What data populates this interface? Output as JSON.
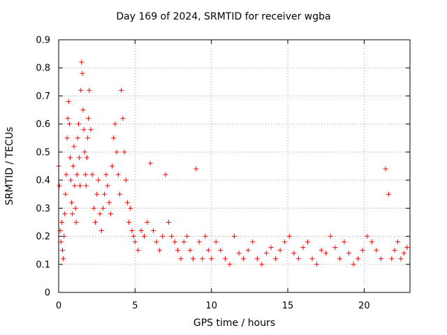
{
  "chart_data": {
    "type": "scatter",
    "title": "Day 169 of 2024, SRMTID for receiver wgba",
    "xlabel": "GPS time / hours",
    "ylabel": "SRMTID / TECUs",
    "xlim": [
      0,
      23
    ],
    "ylim": [
      0,
      0.9
    ],
    "xticks": [
      0,
      5,
      10,
      15,
      20
    ],
    "yticks": [
      0,
      0.1,
      0.2,
      0.3,
      0.4,
      0.5,
      0.6,
      0.7,
      0.8,
      0.9
    ],
    "grid": true,
    "marker": "+",
    "marker_color": "#ff0000",
    "series": [
      {
        "name": "SRMTID",
        "x": [
          0.0,
          0.05,
          0.1,
          0.15,
          0.2,
          0.25,
          0.3,
          0.35,
          0.4,
          0.45,
          0.5,
          0.55,
          0.6,
          0.65,
          0.7,
          0.75,
          0.8,
          0.85,
          0.9,
          0.95,
          1.0,
          1.05,
          1.1,
          1.15,
          1.2,
          1.25,
          1.3,
          1.35,
          1.4,
          1.45,
          1.5,
          1.55,
          1.6,
          1.65,
          1.7,
          1.75,
          1.8,
          1.85,
          1.9,
          1.95,
          2.0,
          2.1,
          2.2,
          2.3,
          2.4,
          2.5,
          2.6,
          2.7,
          2.8,
          2.9,
          3.0,
          3.1,
          3.2,
          3.3,
          3.4,
          3.5,
          3.6,
          3.7,
          3.8,
          3.9,
          4.0,
          4.1,
          4.2,
          4.3,
          4.4,
          4.5,
          4.6,
          4.7,
          4.8,
          4.9,
          5.0,
          5.2,
          5.4,
          5.6,
          5.8,
          6.0,
          6.2,
          6.4,
          6.6,
          6.8,
          7.0,
          7.2,
          7.4,
          7.6,
          7.8,
          8.0,
          8.2,
          8.4,
          8.6,
          8.8,
          9.0,
          9.2,
          9.4,
          9.6,
          9.8,
          10.0,
          10.3,
          10.6,
          10.9,
          11.2,
          11.5,
          11.8,
          12.1,
          12.4,
          12.7,
          13.0,
          13.3,
          13.6,
          13.9,
          14.2,
          14.5,
          14.8,
          15.1,
          15.4,
          15.7,
          16.0,
          16.3,
          16.6,
          16.9,
          17.2,
          17.5,
          17.8,
          18.1,
          18.4,
          18.7,
          19.0,
          19.3,
          19.6,
          19.9,
          20.2,
          20.5,
          20.8,
          21.1,
          21.4,
          21.6,
          21.8,
          22.0,
          22.2,
          22.4,
          22.6,
          22.8
        ],
        "y": [
          0.45,
          0.38,
          0.22,
          0.18,
          0.25,
          0.15,
          0.12,
          0.2,
          0.28,
          0.35,
          0.42,
          0.55,
          0.62,
          0.68,
          0.6,
          0.48,
          0.4,
          0.32,
          0.28,
          0.45,
          0.52,
          0.38,
          0.3,
          0.25,
          0.42,
          0.55,
          0.6,
          0.48,
          0.38,
          0.72,
          0.82,
          0.78,
          0.65,
          0.58,
          0.5,
          0.42,
          0.38,
          0.48,
          0.55,
          0.62,
          0.72,
          0.58,
          0.42,
          0.3,
          0.25,
          0.35,
          0.4,
          0.28,
          0.22,
          0.3,
          0.35,
          0.42,
          0.38,
          0.32,
          0.28,
          0.45,
          0.55,
          0.6,
          0.5,
          0.42,
          0.35,
          0.72,
          0.62,
          0.5,
          0.4,
          0.32,
          0.25,
          0.3,
          0.22,
          0.2,
          0.18,
          0.15,
          0.22,
          0.2,
          0.25,
          0.46,
          0.22,
          0.18,
          0.15,
          0.2,
          0.42,
          0.25,
          0.2,
          0.18,
          0.15,
          0.12,
          0.18,
          0.2,
          0.15,
          0.12,
          0.44,
          0.18,
          0.12,
          0.2,
          0.15,
          0.12,
          0.18,
          0.15,
          0.12,
          0.1,
          0.2,
          0.14,
          0.12,
          0.15,
          0.18,
          0.12,
          0.1,
          0.14,
          0.16,
          0.12,
          0.15,
          0.18,
          0.2,
          0.14,
          0.12,
          0.16,
          0.18,
          0.12,
          0.1,
          0.15,
          0.14,
          0.2,
          0.16,
          0.12,
          0.18,
          0.14,
          0.1,
          0.12,
          0.15,
          0.2,
          0.18,
          0.15,
          0.12,
          0.44,
          0.35,
          0.12,
          0.15,
          0.18,
          0.12,
          0.14,
          0.16
        ]
      }
    ]
  }
}
